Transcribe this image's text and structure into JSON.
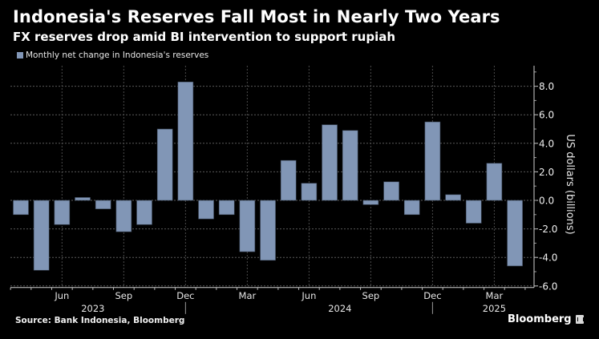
{
  "header": {
    "title": "Indonesia's Reserves Fall Most in Nearly Two Years",
    "subtitle": "FX reserves drop amid BI intervention to support rupiah"
  },
  "legend": {
    "label": "Monthly net change in Indonesia's reserves",
    "color": "#8196b6"
  },
  "footer": {
    "source": "Source: Bank Indonesia, Bloomberg",
    "brand": "Bloomberg"
  },
  "chart_data": {
    "type": "bar",
    "title": "Indonesia's Reserves Fall Most in Nearly Two Years",
    "subtitle": "FX reserves drop amid BI intervention to support rupiah",
    "xlabel": "",
    "ylabel": "US dollars (billions)",
    "ylim": [
      -6.0,
      9.0
    ],
    "yticks": [
      -6.0,
      -4.0,
      -2.0,
      0.0,
      2.0,
      4.0,
      6.0,
      8.0
    ],
    "ytick_labels": [
      "-6.0",
      "-4.0",
      "-2.0",
      "0.0",
      "2.0",
      "4.0",
      "6.0",
      "8.0"
    ],
    "y_axis_side": "right",
    "grid": true,
    "legend_position": "top-left",
    "bar_color": "#8196b6",
    "categories": [
      "Apr 2023",
      "May 2023",
      "Jun 2023",
      "Jul 2023",
      "Aug 2023",
      "Sep 2023",
      "Oct 2023",
      "Nov 2023",
      "Dec 2023",
      "Jan 2024",
      "Feb 2024",
      "Mar 2024",
      "Apr 2024",
      "May 2024",
      "Jun 2024",
      "Jul 2024",
      "Aug 2024",
      "Sep 2024",
      "Oct 2024",
      "Nov 2024",
      "Dec 2024",
      "Jan 2025",
      "Feb 2025",
      "Mar 2025",
      "Apr 2025"
    ],
    "series": [
      {
        "name": "Monthly net change in Indonesia's reserves",
        "values": [
          -1.0,
          -4.9,
          -1.7,
          0.2,
          -0.6,
          -2.2,
          -1.7,
          5.0,
          8.3,
          -1.3,
          -1.0,
          -3.6,
          -4.2,
          2.8,
          1.2,
          5.3,
          4.9,
          -0.3,
          1.3,
          -1.0,
          5.5,
          0.4,
          -1.6,
          2.6,
          -4.6
        ]
      }
    ],
    "x_tick_labels": [
      {
        "index": 2,
        "label": "Jun"
      },
      {
        "index": 5,
        "label": "Sep"
      },
      {
        "index": 8,
        "label": "Dec"
      },
      {
        "index": 11,
        "label": "Mar"
      },
      {
        "index": 14,
        "label": "Jun"
      },
      {
        "index": 17,
        "label": "Sep"
      },
      {
        "index": 20,
        "label": "Dec"
      },
      {
        "index": 23,
        "label": "Mar"
      }
    ],
    "year_labels": [
      {
        "index": 3.5,
        "label": "2023"
      },
      {
        "index": 15.5,
        "label": "2024"
      },
      {
        "index": 23,
        "label": "2025"
      }
    ],
    "year_dividers": [
      8.5,
      20.5
    ]
  }
}
